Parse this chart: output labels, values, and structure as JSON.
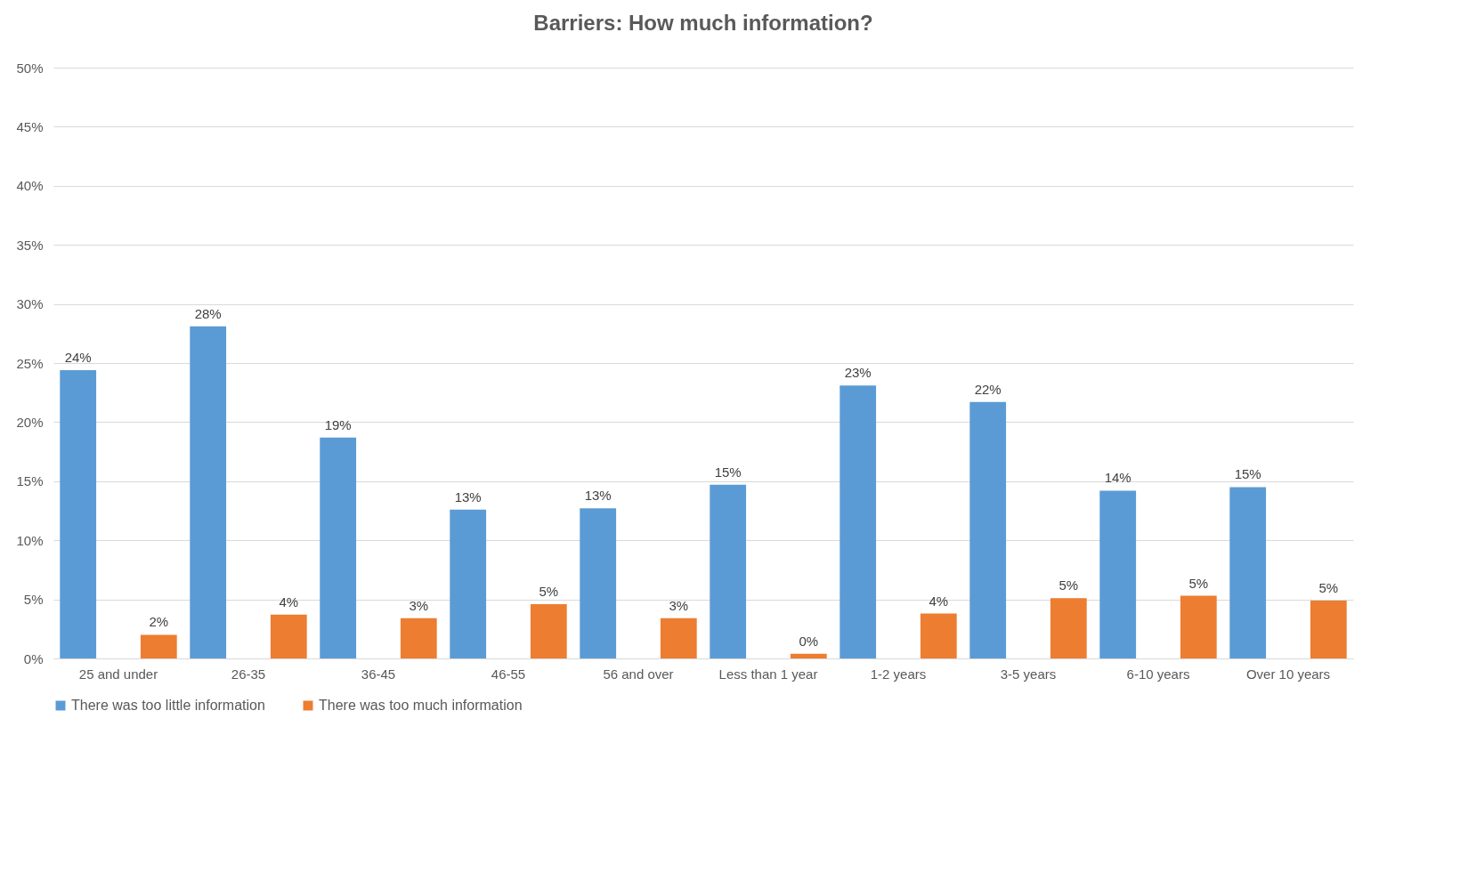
{
  "chart_data": {
    "type": "bar",
    "title": "Barriers:  How much information?",
    "categories": [
      "25 and under",
      "26-35",
      "36-45",
      "46-55",
      "56 and over",
      "Less than 1 year",
      "1-2 years",
      "3-5 years",
      "6-10 years",
      "Over 10 years"
    ],
    "series": [
      {
        "name": "There was too little information",
        "color": "#5b9bd5",
        "values": [
          24.4,
          28.1,
          18.7,
          12.6,
          12.7,
          14.7,
          23.1,
          21.7,
          14.2,
          14.5
        ],
        "value_labels": [
          "24%",
          "28%",
          "19%",
          "13%",
          "13%",
          "15%",
          "23%",
          "22%",
          "14%",
          "15%"
        ]
      },
      {
        "name": "There was too much information",
        "color": "#ed7d31",
        "values": [
          2.0,
          3.7,
          3.4,
          4.6,
          3.4,
          0.4,
          3.8,
          5.1,
          5.3,
          4.9
        ],
        "value_labels": [
          "2%",
          "4%",
          "3%",
          "5%",
          "3%",
          "0%",
          "4%",
          "5%",
          "5%",
          "5%"
        ]
      }
    ],
    "ylim": [
      0,
      50
    ],
    "yticks": [
      {
        "value": 0,
        "label": "0%"
      },
      {
        "value": 5,
        "label": "5%"
      },
      {
        "value": 10,
        "label": "10%"
      },
      {
        "value": 15,
        "label": "15%"
      },
      {
        "value": 20,
        "label": "20%"
      },
      {
        "value": 25,
        "label": "25%"
      },
      {
        "value": 30,
        "label": "30%"
      },
      {
        "value": 35,
        "label": "35%"
      },
      {
        "value": 40,
        "label": "40%"
      },
      {
        "value": 45,
        "label": "45%"
      },
      {
        "value": 50,
        "label": "50%"
      }
    ],
    "grid": "y",
    "legend": "bottom"
  }
}
